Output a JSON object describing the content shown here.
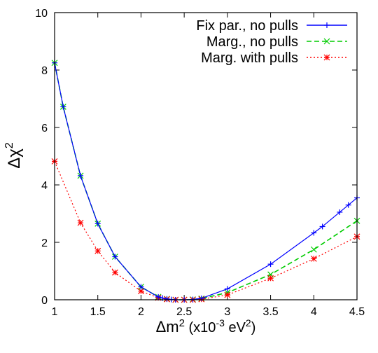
{
  "chart_data": {
    "type": "line",
    "xlabel_main": "Δm",
    "xlabel_sup": "2",
    "xlabel_unit_pre": " (x10",
    "xlabel_unit_exp": "-3",
    "xlabel_unit_mid": " eV",
    "xlabel_unit_sup": "2",
    "xlabel_unit_post": ")",
    "ylabel_main": "Δχ",
    "ylabel_sup": "2",
    "xlim": [
      1,
      4.5
    ],
    "ylim": [
      0,
      10
    ],
    "xticks": [
      1,
      1.5,
      2,
      2.5,
      3,
      3.5,
      4,
      4.5
    ],
    "xtick_labels": [
      "1",
      "1.5",
      "2",
      "2.5",
      "3",
      "3.5",
      "4",
      "4.5"
    ],
    "yticks": [
      0,
      2,
      4,
      6,
      8,
      10
    ],
    "ytick_labels": [
      "0",
      "2",
      "4",
      "6",
      "8",
      "10"
    ],
    "legend_position": "top-right",
    "series": [
      {
        "name": "Fix par., no pulls",
        "color": "#0000ff",
        "dash": "solid",
        "marker": "plus",
        "x": [
          1.0,
          1.1,
          1.3,
          1.5,
          1.7,
          2.0,
          2.2,
          2.25,
          2.3,
          2.35,
          2.4,
          2.5,
          2.6,
          2.7,
          3.0,
          3.5,
          4.0,
          4.1,
          4.3,
          4.4,
          4.5
        ],
        "y": [
          8.25,
          6.72,
          4.32,
          2.65,
          1.5,
          0.45,
          0.1,
          0.06,
          0.03,
          0.01,
          0.0,
          0.0,
          0.01,
          0.05,
          0.38,
          1.24,
          2.33,
          2.55,
          3.05,
          3.3,
          3.55
        ]
      },
      {
        "name": "Marg., no pulls",
        "color": "#00cc00",
        "dash": "dashed",
        "marker": "x",
        "x": [
          1.0,
          1.1,
          1.3,
          1.5,
          1.7,
          2.0,
          2.2,
          2.3,
          2.4,
          2.5,
          2.6,
          2.7,
          3.0,
          3.5,
          4.0,
          4.5
        ],
        "y": [
          8.25,
          6.72,
          4.32,
          2.65,
          1.5,
          0.45,
          0.1,
          0.03,
          0.0,
          0.0,
          0.01,
          0.04,
          0.25,
          0.88,
          1.75,
          2.75
        ]
      },
      {
        "name": "Marg. with pulls",
        "color": "#ff0000",
        "dash": "dotted",
        "marker": "star",
        "x": [
          1.0,
          1.3,
          1.5,
          1.7,
          2.0,
          2.2,
          2.3,
          2.4,
          2.5,
          2.6,
          2.7,
          3.0,
          3.5,
          4.0,
          4.5
        ],
        "y": [
          4.82,
          2.68,
          1.7,
          0.95,
          0.3,
          0.07,
          0.02,
          0.0,
          0.0,
          0.0,
          0.02,
          0.17,
          0.75,
          1.43,
          2.2
        ]
      }
    ]
  }
}
